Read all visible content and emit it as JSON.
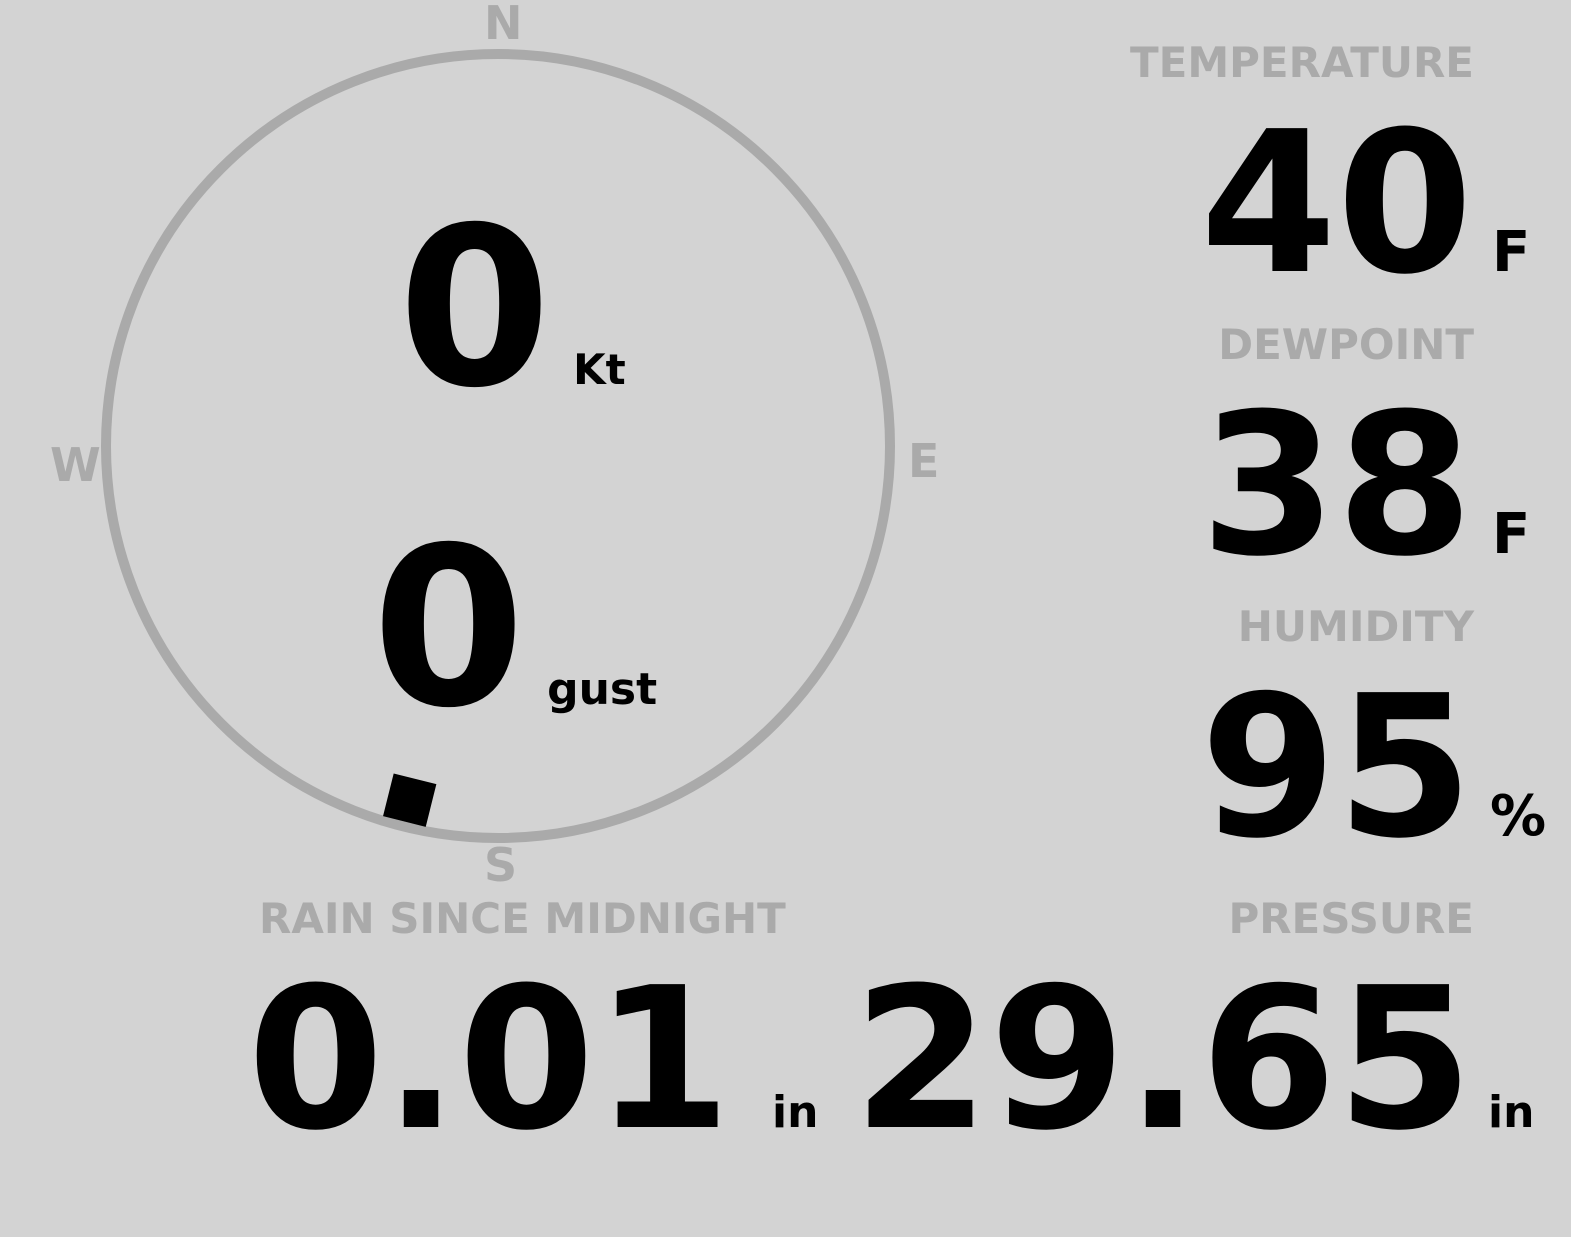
{
  "wind": {
    "speed": "0",
    "speed_unit": "Kt",
    "gust": "0",
    "gust_unit": "gust",
    "direction_degrees": 194,
    "compass": {
      "n": "N",
      "e": "E",
      "s": "S",
      "w": "W"
    }
  },
  "temperature": {
    "label": "TEMPERATURE",
    "value": "40",
    "unit": "F"
  },
  "dewpoint": {
    "label": "DEWPOINT",
    "value": "38",
    "unit": "F"
  },
  "humidity": {
    "label": "HUMIDITY",
    "value": "95",
    "unit": "%"
  },
  "rain": {
    "label": "RAIN SINCE MIDNIGHT",
    "value": "0.01",
    "unit": "in"
  },
  "pressure": {
    "label": "PRESSURE",
    "value": "29.65",
    "unit": "in"
  },
  "colors": {
    "background": "#d3d3d3",
    "label": "#aaaaaa",
    "value": "#000000"
  }
}
